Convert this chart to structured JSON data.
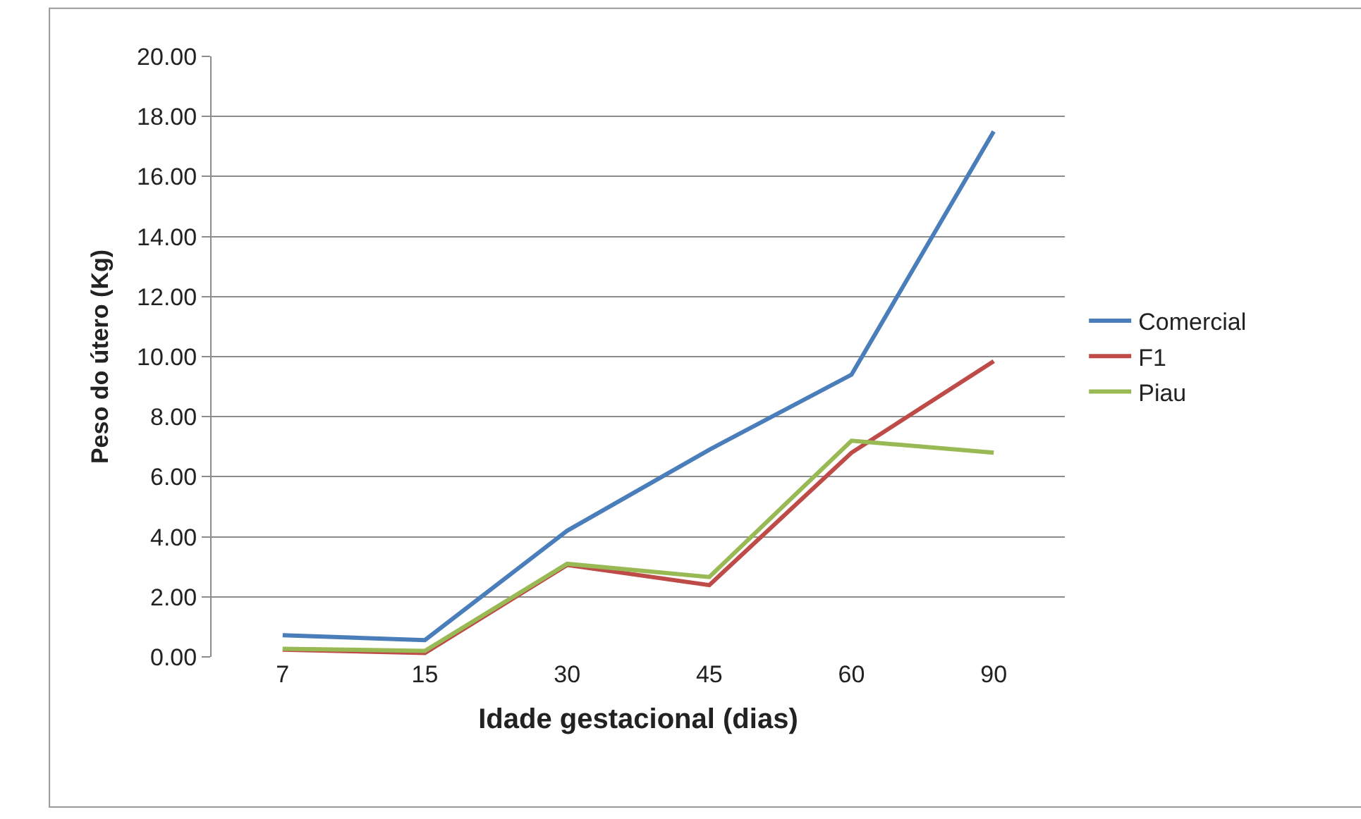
{
  "chart_data": {
    "type": "line",
    "xlabel": "Idade gestacional (dias)",
    "ylabel": "Peso do útero (Kg)",
    "categories": [
      "7",
      "15",
      "30",
      "45",
      "60",
      "90"
    ],
    "series": [
      {
        "name": "Comercial",
        "color": "#4a7ebb",
        "values": [
          0.72,
          0.56,
          4.2,
          6.9,
          9.4,
          17.5
        ]
      },
      {
        "name": "F1",
        "color": "#be4b48",
        "values": [
          0.24,
          0.13,
          3.06,
          2.39,
          6.8,
          9.85
        ]
      },
      {
        "name": "Piau",
        "color": "#98b954",
        "values": [
          0.27,
          0.2,
          3.1,
          2.66,
          7.2,
          6.8
        ]
      }
    ],
    "ylim": [
      0,
      20
    ],
    "yticks": [
      {
        "value": 0,
        "label": "0.00"
      },
      {
        "value": 2,
        "label": "2.00"
      },
      {
        "value": 4,
        "label": "4.00"
      },
      {
        "value": 6,
        "label": "6.00"
      },
      {
        "value": 8,
        "label": "8.00"
      },
      {
        "value": 10,
        "label": "10.00"
      },
      {
        "value": 12,
        "label": "12.00"
      },
      {
        "value": 14,
        "label": "14.00"
      },
      {
        "value": 16,
        "label": "16.00"
      },
      {
        "value": 18,
        "label": "18.00"
      },
      {
        "value": 20,
        "label": "20.00"
      }
    ],
    "grid": "y",
    "legend": "right",
    "marker": "none",
    "line_style": "solid"
  }
}
